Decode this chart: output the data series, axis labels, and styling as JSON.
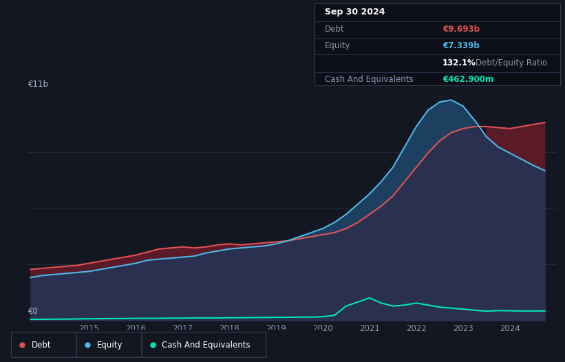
{
  "bg_color": "#131722",
  "grid_color": "#252d3d",
  "title_date": "Sep 30 2024",
  "debt_label": "Debt",
  "equity_label": "Equity",
  "cash_label": "Cash And Equivalents",
  "debt_value": "€9.693b",
  "equity_value": "€7.339b",
  "ratio_value": "132.1% Debt/Equity Ratio",
  "ratio_bold": "132.1%",
  "ratio_normal": " Debt/Equity Ratio",
  "cash_value": "€462.900m",
  "debt_color": "#e05252",
  "equity_color": "#4db8e8",
  "cash_color": "#00e6b8",
  "fill_base_color": "#2a3150",
  "fill_equity_above_color": "#1e4060",
  "fill_debt_above_color": "#5a1a28",
  "y_label_top": "€11b",
  "y_label_bottom": "€0",
  "ylim": [
    0,
    11
  ],
  "xlim": [
    2013.7,
    2025.0
  ],
  "x_ticks": [
    2015,
    2016,
    2017,
    2018,
    2019,
    2020,
    2021,
    2022,
    2023,
    2024
  ],
  "debt_x": [
    2013.75,
    2014.0,
    2014.25,
    2014.5,
    2014.75,
    2015.0,
    2015.25,
    2015.5,
    2015.75,
    2016.0,
    2016.25,
    2016.5,
    2016.75,
    2017.0,
    2017.25,
    2017.5,
    2017.75,
    2018.0,
    2018.25,
    2018.5,
    2018.75,
    2019.0,
    2019.25,
    2019.5,
    2019.75,
    2020.0,
    2020.25,
    2020.5,
    2020.75,
    2021.0,
    2021.25,
    2021.5,
    2021.75,
    2022.0,
    2022.25,
    2022.5,
    2022.75,
    2023.0,
    2023.25,
    2023.5,
    2023.75,
    2024.0,
    2024.25,
    2024.5,
    2024.75
  ],
  "debt_y": [
    2.5,
    2.55,
    2.6,
    2.65,
    2.7,
    2.8,
    2.9,
    3.0,
    3.1,
    3.2,
    3.35,
    3.5,
    3.55,
    3.6,
    3.55,
    3.6,
    3.7,
    3.75,
    3.7,
    3.75,
    3.8,
    3.85,
    3.9,
    4.0,
    4.1,
    4.2,
    4.3,
    4.5,
    4.8,
    5.2,
    5.6,
    6.1,
    6.8,
    7.5,
    8.2,
    8.8,
    9.2,
    9.4,
    9.5,
    9.5,
    9.45,
    9.4,
    9.5,
    9.6,
    9.693
  ],
  "equity_x": [
    2013.75,
    2014.0,
    2014.25,
    2014.5,
    2014.75,
    2015.0,
    2015.25,
    2015.5,
    2015.75,
    2016.0,
    2016.25,
    2016.5,
    2016.75,
    2017.0,
    2017.25,
    2017.5,
    2017.75,
    2018.0,
    2018.25,
    2018.5,
    2018.75,
    2019.0,
    2019.25,
    2019.5,
    2019.75,
    2020.0,
    2020.25,
    2020.5,
    2020.75,
    2021.0,
    2021.25,
    2021.5,
    2021.75,
    2022.0,
    2022.25,
    2022.5,
    2022.75,
    2023.0,
    2023.25,
    2023.5,
    2023.75,
    2024.0,
    2024.25,
    2024.5,
    2024.75
  ],
  "equity_y": [
    2.1,
    2.2,
    2.25,
    2.3,
    2.35,
    2.4,
    2.5,
    2.6,
    2.7,
    2.8,
    2.95,
    3.0,
    3.05,
    3.1,
    3.15,
    3.3,
    3.4,
    3.5,
    3.55,
    3.6,
    3.65,
    3.75,
    3.9,
    4.1,
    4.3,
    4.5,
    4.8,
    5.2,
    5.7,
    6.2,
    6.8,
    7.5,
    8.5,
    9.5,
    10.3,
    10.7,
    10.8,
    10.5,
    9.8,
    9.0,
    8.5,
    8.2,
    7.9,
    7.6,
    7.339
  ],
  "cash_x": [
    2013.75,
    2014.0,
    2014.25,
    2014.5,
    2014.75,
    2015.0,
    2015.25,
    2015.5,
    2015.75,
    2016.0,
    2016.25,
    2016.5,
    2016.75,
    2017.0,
    2017.25,
    2017.5,
    2017.75,
    2018.0,
    2018.25,
    2018.5,
    2018.75,
    2019.0,
    2019.25,
    2019.5,
    2019.75,
    2020.0,
    2020.25,
    2020.5,
    2020.75,
    2021.0,
    2021.25,
    2021.5,
    2021.75,
    2022.0,
    2022.25,
    2022.5,
    2022.75,
    2023.0,
    2023.25,
    2023.5,
    2023.75,
    2024.0,
    2024.25,
    2024.5,
    2024.75
  ],
  "cash_y": [
    0.05,
    0.05,
    0.06,
    0.06,
    0.07,
    0.08,
    0.08,
    0.09,
    0.09,
    0.1,
    0.1,
    0.1,
    0.11,
    0.11,
    0.12,
    0.12,
    0.12,
    0.13,
    0.13,
    0.14,
    0.14,
    0.15,
    0.15,
    0.16,
    0.16,
    0.18,
    0.25,
    0.7,
    0.9,
    1.1,
    0.85,
    0.7,
    0.75,
    0.85,
    0.75,
    0.65,
    0.6,
    0.55,
    0.5,
    0.45,
    0.48,
    0.47,
    0.46,
    0.46,
    0.4629
  ]
}
